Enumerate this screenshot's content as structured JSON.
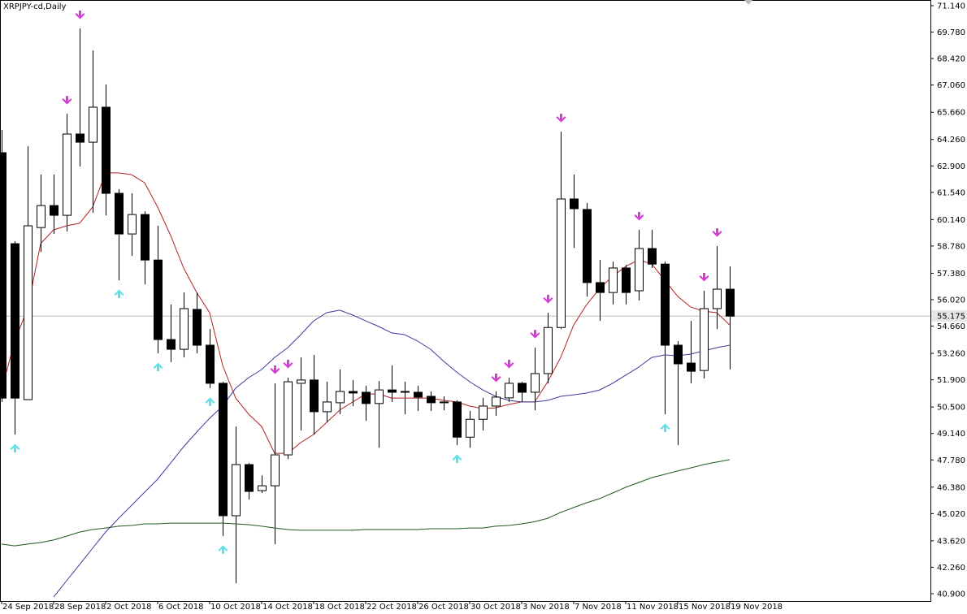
{
  "chart_data": {
    "type": "candlestick",
    "title": "XRPJPY-cd,Daily",
    "categories": [
      "24 Sep 2018",
      null,
      null,
      null,
      "28 Sep 2018",
      null,
      null,
      null,
      "2 Oct 2018",
      null,
      null,
      null,
      "6 Oct 2018",
      null,
      null,
      null,
      "10 Oct 2018",
      null,
      null,
      null,
      "14 Oct 2018",
      null,
      null,
      null,
      "18 Oct 2018",
      null,
      null,
      null,
      "22 Oct 2018",
      null,
      null,
      null,
      "26 Oct 2018",
      null,
      null,
      null,
      "30 Oct 2018",
      null,
      null,
      null,
      "3 Nov 2018",
      null,
      null,
      null,
      "7 Nov 2018",
      null,
      null,
      null,
      "11 Nov 2018",
      null,
      null,
      null,
      "15 Nov 2018",
      null,
      null,
      null,
      "19 Nov 2018"
    ],
    "open": [
      63.58,
      58.9,
      50.88,
      59.73,
      60.86,
      60.36,
      64.54,
      64.12,
      65.92,
      61.49,
      59.4,
      60.4,
      58.06,
      53.97,
      53.47,
      55.52,
      53.68,
      51.72,
      44.91,
      47.54,
      46.2,
      46.45,
      48.04,
      51.72,
      51.89,
      50.26,
      50.72,
      51.3,
      51.26,
      50.68,
      51.38,
      51.26,
      51.26,
      51.05,
      50.72,
      50.76,
      48.95,
      49.87,
      50.55,
      50.97,
      51.72,
      51.26,
      52.22,
      54.59,
      61.2,
      60.66,
      56.9,
      56.39,
      57.65,
      56.48,
      58.65,
      57.85,
      53.68,
      52.76,
      52.38,
      55.56,
      56.56
    ],
    "high": [
      64.75,
      59.03,
      63.91,
      62.45,
      62.45,
      65.58,
      69.97,
      68.84,
      67.09,
      61.7,
      61.49,
      60.57,
      59.82,
      55.77,
      56.39,
      56.39,
      54.51,
      51.8,
      49.5,
      47.62,
      46.99,
      51.72,
      52.01,
      53.05,
      53.18,
      51.8,
      52.43,
      51.89,
      51.59,
      51.84,
      52.64,
      51.8,
      51.59,
      51.3,
      51.05,
      50.84,
      50.3,
      50.97,
      51.3,
      52.01,
      51.8,
      53.55,
      55.35,
      64.66,
      62.45,
      60.99,
      58.06,
      57.98,
      57.81,
      59.61,
      59.61,
      57.98,
      53.89,
      54.93,
      56.48,
      58.77,
      57.73
    ],
    "low": [
      50.76,
      49.08,
      50.88,
      58.48,
      59.4,
      59.53,
      62.87,
      60.49,
      60.36,
      57.02,
      58.27,
      56.81,
      53.26,
      52.81,
      53.05,
      53.26,
      51.47,
      43.87,
      41.44,
      45.74,
      46.08,
      43.45,
      47.83,
      49.29,
      49.08,
      49.71,
      50.13,
      50.55,
      49.79,
      48.41,
      50.76,
      50.13,
      50.3,
      50.3,
      50.34,
      48.54,
      48.41,
      49.29,
      50.05,
      50.76,
      50.76,
      50.34,
      51.72,
      54.51,
      58.69,
      56.18,
      54.93,
      55.77,
      55.77,
      55.98,
      57.65,
      50.13,
      48.54,
      51.72,
      51.97,
      54.51,
      52.43
    ],
    "close": [
      50.96,
      50.96,
      59.82,
      60.86,
      60.36,
      64.54,
      64.12,
      65.92,
      61.49,
      59.4,
      60.4,
      58.06,
      53.97,
      53.47,
      55.56,
      53.68,
      51.72,
      44.91,
      47.54,
      46.16,
      46.45,
      48.04,
      51.8,
      51.89,
      50.26,
      50.76,
      51.3,
      51.22,
      50.68,
      51.38,
      51.26,
      51.3,
      51.01,
      50.72,
      50.76,
      48.95,
      49.87,
      50.55,
      51.01,
      51.72,
      51.26,
      52.22,
      54.59,
      61.2,
      60.7,
      56.9,
      56.39,
      57.65,
      56.39,
      58.65,
      57.85,
      53.68,
      52.72,
      52.34,
      55.56,
      56.56,
      55.175
    ],
    "lines": [
      {
        "color": "#b22222",
        "values": [
          51.38,
          53.89,
          55.56,
          58.9,
          59.61,
          59.82,
          59.95,
          60.78,
          62.54,
          62.54,
          62.45,
          62.03,
          60.78,
          59.32,
          57.65,
          56.39,
          55.35,
          52.64,
          50.96,
          50.13,
          49.5,
          48.12,
          48.12,
          48.67,
          49.09,
          49.71,
          50.34,
          50.76,
          51.17,
          51.17,
          50.96,
          50.96,
          50.96,
          50.96,
          50.84,
          50.76,
          50.55,
          50.42,
          50.46,
          50.63,
          50.76,
          50.76,
          51.8,
          53.05,
          54.72,
          55.77,
          56.6,
          57.23,
          57.73,
          58.07,
          57.86,
          57.02,
          56.19,
          55.64,
          55.43,
          55.35,
          54.72
        ]
      },
      {
        "color": "#3a3aa0",
        "values": [
          null,
          null,
          null,
          null,
          40.73,
          41.57,
          42.4,
          43.24,
          44.07,
          44.78,
          45.45,
          46.12,
          46.79,
          47.62,
          48.46,
          49.21,
          49.92,
          50.55,
          51.47,
          52.01,
          52.43,
          53.05,
          53.55,
          54.22,
          54.93,
          55.35,
          55.48,
          55.23,
          54.93,
          54.64,
          54.31,
          54.22,
          53.89,
          53.47,
          52.85,
          52.3,
          51.8,
          51.38,
          51.05,
          50.84,
          50.76,
          50.76,
          50.84,
          51.05,
          51.13,
          51.22,
          51.38,
          51.72,
          52.14,
          52.55,
          53.05,
          53.18,
          53.14,
          53.22,
          53.39,
          53.55,
          53.68
        ]
      },
      {
        "color": "#1e5a1e",
        "values": [
          43.45,
          43.36,
          43.45,
          43.53,
          43.66,
          43.86,
          44.07,
          44.2,
          44.28,
          44.37,
          44.41,
          44.49,
          44.49,
          44.53,
          44.53,
          44.53,
          44.53,
          44.53,
          44.49,
          44.45,
          44.37,
          44.28,
          44.2,
          44.16,
          44.16,
          44.16,
          44.16,
          44.16,
          44.2,
          44.2,
          44.2,
          44.2,
          44.2,
          44.24,
          44.24,
          44.24,
          44.28,
          44.28,
          44.37,
          44.41,
          44.49,
          44.6,
          44.78,
          45.08,
          45.33,
          45.58,
          45.79,
          46.08,
          46.37,
          46.62,
          46.87,
          47.04,
          47.21,
          47.37,
          47.54,
          47.67,
          47.79
        ]
      }
    ],
    "arrows_down": [
      5,
      6,
      21,
      22,
      38,
      39,
      41,
      42,
      43,
      49,
      54,
      55
    ],
    "arrows_up": [
      1,
      9,
      12,
      16,
      17,
      35,
      51
    ],
    "arrow_down_color": "#d43cd4",
    "arrow_up_color": "#5ee0e8",
    "current_price": {
      "value": 55.175,
      "label": "55.175"
    },
    "ylim": [
      40.9,
      71.14
    ],
    "yticks": [
      {
        "value": 71.14,
        "label": "71.140"
      },
      {
        "value": 69.78,
        "label": "69.780"
      },
      {
        "value": 68.42,
        "label": "68.420"
      },
      {
        "value": 67.06,
        "label": "67.060"
      },
      {
        "value": 65.66,
        "label": "65.660"
      },
      {
        "value": 64.26,
        "label": "64.260"
      },
      {
        "value": 62.9,
        "label": "62.900"
      },
      {
        "value": 61.54,
        "label": "61.540"
      },
      {
        "value": 60.14,
        "label": "60.140"
      },
      {
        "value": 58.78,
        "label": "58.780"
      },
      {
        "value": 57.38,
        "label": "57.380"
      },
      {
        "value": 56.02,
        "label": "56.020"
      },
      {
        "value": 54.66,
        "label": "54.660"
      },
      {
        "value": 53.26,
        "label": "53.260"
      },
      {
        "value": 51.9,
        "label": "51.900"
      },
      {
        "value": 50.5,
        "label": "50.500"
      },
      {
        "value": 49.14,
        "label": "49.140"
      },
      {
        "value": 47.78,
        "label": "47.780"
      },
      {
        "value": 46.38,
        "label": "46.380"
      },
      {
        "value": 45.02,
        "label": "45.020"
      },
      {
        "value": 43.62,
        "label": "43.620"
      },
      {
        "value": 42.26,
        "label": "42.260"
      },
      {
        "value": 40.9,
        "label": "40.900"
      }
    ],
    "grid": false
  }
}
